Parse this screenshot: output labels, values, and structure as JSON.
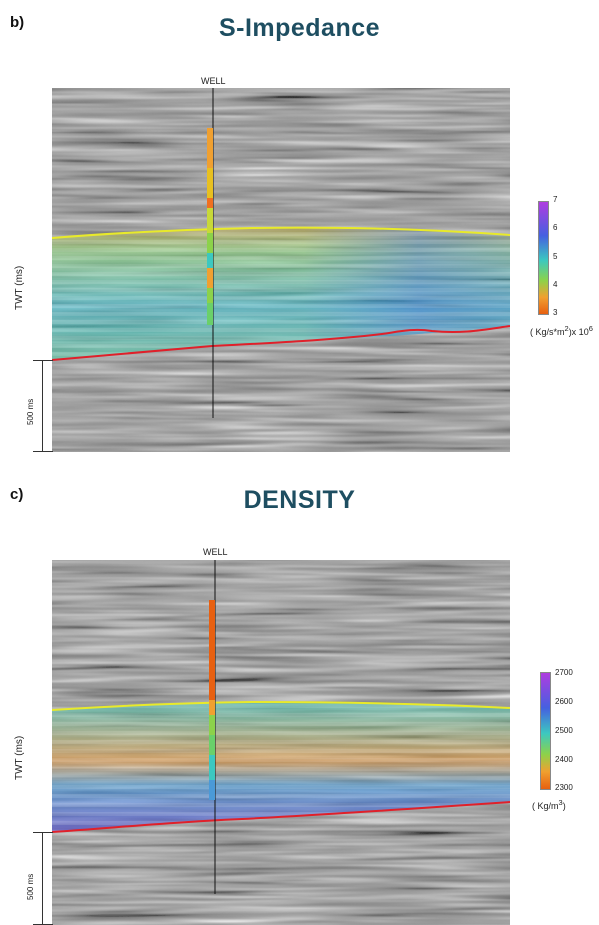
{
  "panels": [
    {
      "letter": "b)",
      "title": "S-Impedance",
      "well_label": "WELL",
      "yaxis_label": "TWT (ms)",
      "scale_label": "500 ms",
      "colorbar": {
        "ticks": [
          "7",
          "6",
          "5",
          "4",
          "3"
        ],
        "unit_prefix": "( Kg/s*m",
        "unit_sup": "2",
        "unit_mid": ")x 10",
        "unit_sup2": "6",
        "colors": [
          "#b03ce0",
          "#4560e0",
          "#3cc8c0",
          "#8cd24a",
          "#f0a030",
          "#e86010"
        ]
      }
    },
    {
      "letter": "c)",
      "title": "DENSITY",
      "well_label": "WELL",
      "yaxis_label": "TWT (ms)",
      "scale_label": "500 ms",
      "colorbar": {
        "ticks": [
          "2700",
          "2600",
          "2500",
          "2400",
          "2300"
        ],
        "unit_prefix": "( Kg/m",
        "unit_sup": "3",
        "unit_mid": ")",
        "unit_sup2": "",
        "colors": [
          "#b03ce0",
          "#4560e0",
          "#3cc8c0",
          "#8cd24a",
          "#f0a030",
          "#e86010"
        ]
      }
    }
  ]
}
